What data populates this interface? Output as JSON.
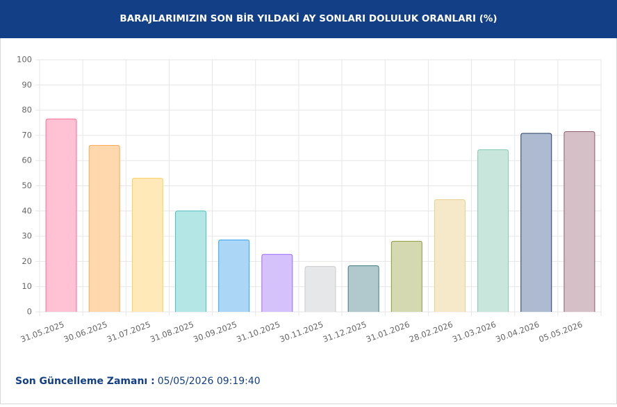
{
  "chart_data": {
    "type": "bar",
    "title": "BARAJLARIMIZIN SON BİR YILDAKİ AY SONLARI DOLULUK ORANLARI (%)",
    "categories": [
      "31.05.2025",
      "30.06.2025",
      "31.07.2025",
      "31.08.2025",
      "30.09.2025",
      "31.10.2025",
      "30.11.2025",
      "31.12.2025",
      "31.01.2026",
      "28.02.2026",
      "31.03.2026",
      "30.04.2026",
      "05.05.2026"
    ],
    "values": [
      76.5,
      66,
      53,
      40,
      28.5,
      22.8,
      18,
      18.3,
      28,
      44.5,
      64.3,
      70.8,
      71.5
    ],
    "colors": [
      "#ffc1d3",
      "#ffd8ae",
      "#ffe9b8",
      "#b4e6e6",
      "#acd6f6",
      "#d6c2fb",
      "#e6e7e9",
      "#b1c9cc",
      "#d4d9b2",
      "#f6e9c9",
      "#c9e6dd",
      "#adbacf",
      "#d6c0c8"
    ],
    "border_colors": [
      "#ff6b94",
      "#ffa64d",
      "#ffcf60",
      "#4bc0c0",
      "#36a2eb",
      "#9966ff",
      "#c9cbcf",
      "#3e7a80",
      "#8a9a3c",
      "#e8cf8c",
      "#84c8b2",
      "#223a66",
      "#8c5c6c"
    ],
    "ylim": [
      0,
      100
    ],
    "yticks": [
      0,
      10,
      20,
      30,
      40,
      50,
      60,
      70,
      80,
      90,
      100
    ],
    "grid": true,
    "footer": {
      "label": "Son Güncelleme Zamanı :",
      "value": "05/05/2026 09:19:40"
    }
  }
}
